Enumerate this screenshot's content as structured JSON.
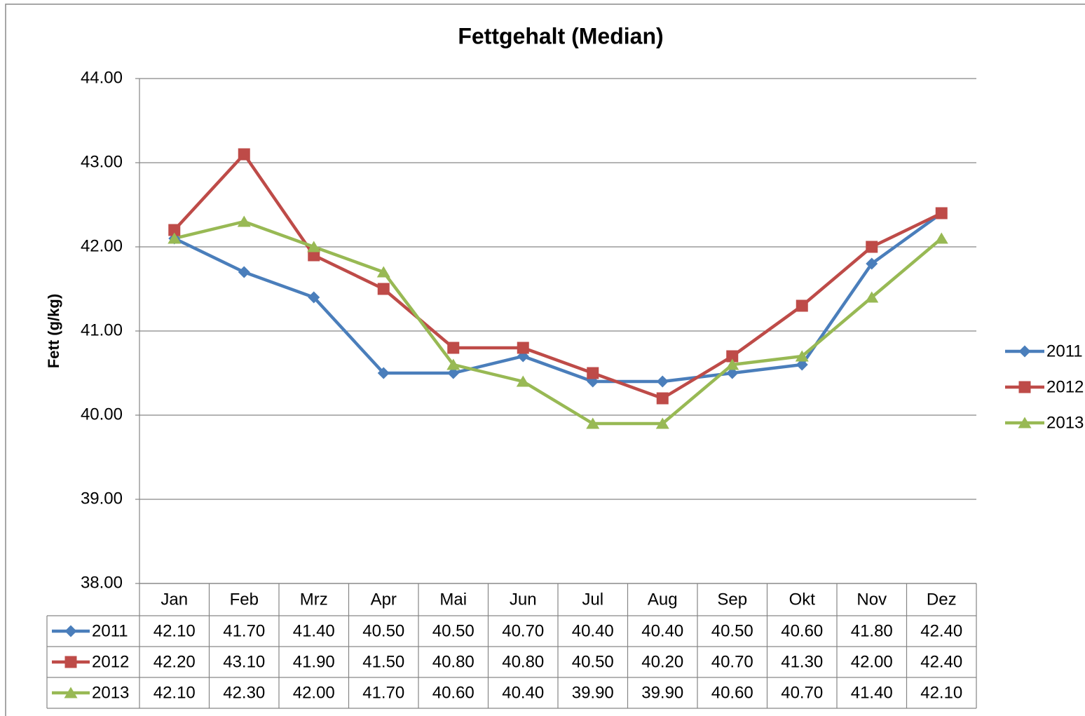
{
  "chart_data": {
    "type": "line",
    "title": "Fettgehalt  (Median)",
    "y_label": "Fett (g/kg)",
    "categories": [
      "Jan",
      "Feb",
      "Mrz",
      "Apr",
      "Mai",
      "Jun",
      "Jul",
      "Aug",
      "Sep",
      "Okt",
      "Nov",
      "Dez"
    ],
    "series": [
      {
        "name": "2011",
        "color": "#4a7ebb",
        "marker": "diamond",
        "values": [
          42.1,
          41.7,
          41.4,
          40.5,
          40.5,
          40.7,
          40.4,
          40.4,
          40.5,
          40.6,
          41.8,
          42.4
        ],
        "value_labels": [
          "42.10",
          "41.70",
          "41.40",
          "40.50",
          "40.50",
          "40.70",
          "40.40",
          "40.40",
          "40.50",
          "40.60",
          "41.80",
          "42.40"
        ]
      },
      {
        "name": "2012",
        "color": "#be4b48",
        "marker": "square",
        "values": [
          42.2,
          43.1,
          41.9,
          41.5,
          40.8,
          40.8,
          40.5,
          40.2,
          40.7,
          41.3,
          42.0,
          42.4
        ],
        "value_labels": [
          "42.20",
          "43.10",
          "41.90",
          "41.50",
          "40.80",
          "40.80",
          "40.50",
          "40.20",
          "40.70",
          "41.30",
          "42.00",
          "42.40"
        ]
      },
      {
        "name": "2013",
        "color": "#98b954",
        "marker": "triangle",
        "values": [
          42.1,
          42.3,
          42.0,
          41.7,
          40.6,
          40.4,
          39.9,
          39.9,
          40.6,
          40.7,
          41.4,
          42.1
        ],
        "value_labels": [
          "42.10",
          "42.30",
          "42.00",
          "41.70",
          "40.60",
          "40.40",
          "39.90",
          "39.90",
          "40.60",
          "40.70",
          "41.40",
          "42.10"
        ]
      }
    ],
    "ylim": [
      38,
      44
    ],
    "yticks": [
      {
        "value": 38,
        "label": "38.00"
      },
      {
        "value": 39,
        "label": "39.00"
      },
      {
        "value": 40,
        "label": "40.00"
      },
      {
        "value": 41,
        "label": "41.00"
      },
      {
        "value": 42,
        "label": "42.00"
      },
      {
        "value": 43,
        "label": "43.00"
      },
      {
        "value": 44,
        "label": "44.00"
      }
    ],
    "grid": true,
    "legend": "right",
    "data_table": true
  }
}
